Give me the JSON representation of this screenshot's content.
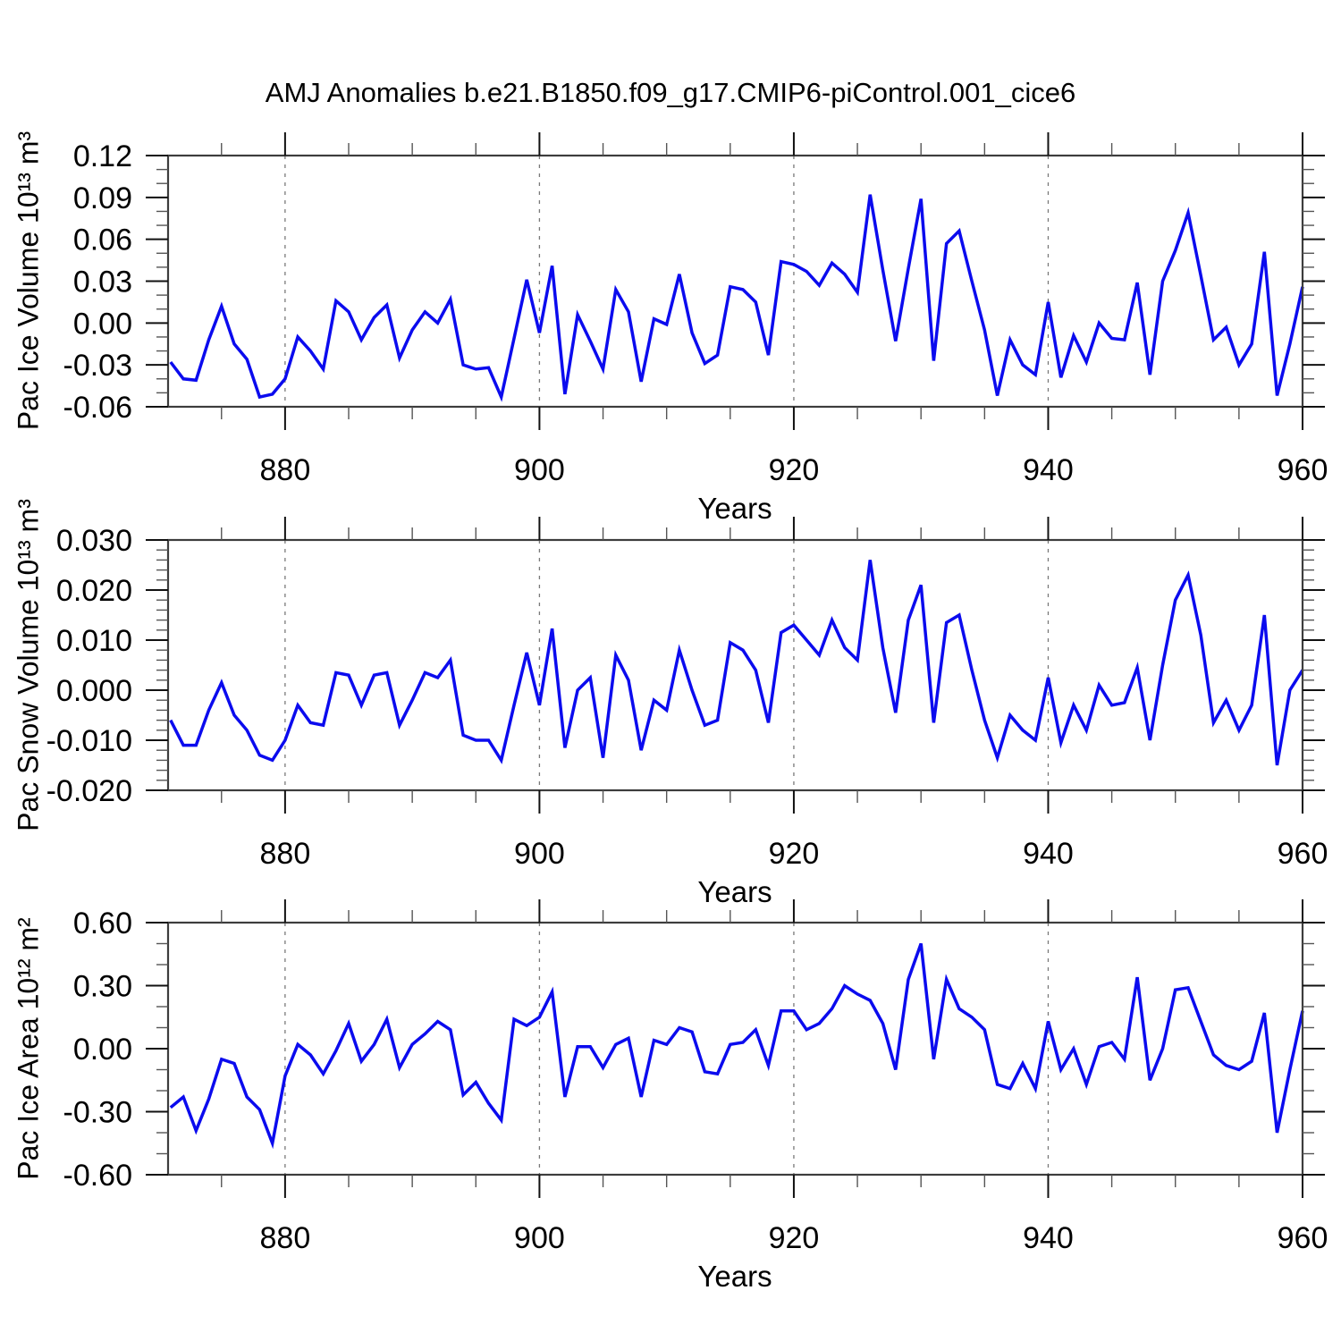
{
  "title": "AMJ Anomalies b.e21.B1850.f09_g17.CMIP6-piControl.001_cice6",
  "chart_data": {
    "type": "line",
    "x_label": "Years",
    "line_color": "#0b0bee",
    "x_axis": {
      "min": 870.8,
      "max": 960,
      "major_ticks": [
        880,
        900,
        920,
        940,
        960
      ],
      "minor_ticks": [
        875,
        885,
        890,
        895,
        905,
        910,
        915,
        925,
        930,
        935,
        945,
        950,
        955
      ],
      "gridlines": [
        880,
        900,
        920,
        940
      ]
    },
    "years": [
      871,
      872,
      873,
      874,
      875,
      876,
      877,
      878,
      879,
      880,
      881,
      882,
      883,
      884,
      885,
      886,
      887,
      888,
      889,
      890,
      891,
      892,
      893,
      894,
      895,
      896,
      897,
      898,
      899,
      900,
      901,
      902,
      903,
      904,
      905,
      906,
      907,
      908,
      909,
      910,
      911,
      912,
      913,
      914,
      915,
      916,
      917,
      918,
      919,
      920,
      921,
      922,
      923,
      924,
      925,
      926,
      927,
      928,
      929,
      930,
      931,
      932,
      933,
      934,
      935,
      936,
      937,
      938,
      939,
      940,
      941,
      942,
      943,
      944,
      945,
      946,
      947,
      948,
      949,
      950,
      951,
      952,
      953,
      954,
      955,
      956,
      957,
      958,
      959,
      960
    ],
    "panels": [
      {
        "name": "pac-ice-volume",
        "y_label": "Pac Ice Volume 10¹³ m³",
        "ylim": [
          -0.06,
          0.12
        ],
        "y_major_step": 0.03,
        "y_minor_step": 0.01,
        "y_decimals": 2,
        "values": [
          -0.028,
          -0.04,
          -0.041,
          -0.012,
          0.012,
          -0.015,
          -0.026,
          -0.053,
          -0.051,
          -0.04,
          -0.01,
          -0.02,
          -0.033,
          0.016,
          0.008,
          -0.012,
          0.004,
          0.013,
          -0.025,
          -0.005,
          0.008,
          0.0,
          0.017,
          -0.03,
          -0.033,
          -0.032,
          -0.053,
          -0.011,
          0.031,
          -0.007,
          0.041,
          -0.051,
          0.006,
          -0.013,
          -0.033,
          0.024,
          0.008,
          -0.042,
          0.003,
          -0.001,
          0.035,
          -0.007,
          -0.029,
          -0.023,
          0.026,
          0.024,
          0.015,
          -0.023,
          0.044,
          0.042,
          0.037,
          0.027,
          0.043,
          0.035,
          0.022,
          0.092,
          0.038,
          -0.013,
          0.039,
          0.089,
          -0.027,
          0.057,
          0.066,
          0.03,
          -0.005,
          -0.052,
          -0.012,
          -0.03,
          -0.037,
          0.015,
          -0.039,
          -0.009,
          -0.028,
          0.0,
          -0.011,
          -0.012,
          0.029,
          -0.037,
          0.03,
          0.052,
          0.079,
          0.034,
          -0.012,
          -0.003,
          -0.03,
          -0.015,
          0.051,
          -0.052,
          -0.015,
          0.026
        ]
      },
      {
        "name": "pac-snow-volume",
        "y_label": "Pac Snow Volume 10¹³ m³",
        "ylim": [
          -0.02,
          0.03
        ],
        "y_major_step": 0.01,
        "y_minor_step": 0.002,
        "y_decimals": 3,
        "values": [
          -0.006,
          -0.011,
          -0.011,
          -0.004,
          0.0015,
          -0.005,
          -0.008,
          -0.013,
          -0.014,
          -0.01,
          -0.003,
          -0.0065,
          -0.007,
          0.0035,
          0.003,
          -0.003,
          0.003,
          0.0035,
          -0.007,
          -0.002,
          0.0035,
          0.0025,
          0.006,
          -0.009,
          -0.01,
          -0.01,
          -0.014,
          -0.003,
          0.0075,
          -0.003,
          0.0123,
          -0.0115,
          0.0,
          0.0025,
          -0.0135,
          0.007,
          0.002,
          -0.012,
          -0.002,
          -0.004,
          0.008,
          0.0,
          -0.007,
          -0.006,
          0.0095,
          0.008,
          0.004,
          -0.0065,
          0.0115,
          0.013,
          0.01,
          0.007,
          0.014,
          0.0085,
          0.006,
          0.026,
          0.0085,
          -0.0045,
          0.014,
          0.021,
          -0.0065,
          0.0135,
          0.015,
          0.004,
          -0.006,
          -0.0135,
          -0.005,
          -0.008,
          -0.01,
          0.0025,
          -0.0105,
          -0.003,
          -0.008,
          0.001,
          -0.003,
          -0.0025,
          0.0045,
          -0.01,
          0.005,
          0.018,
          0.023,
          0.011,
          -0.0065,
          -0.002,
          -0.008,
          -0.003,
          0.015,
          -0.015,
          0.0,
          0.004
        ]
      },
      {
        "name": "pac-ice-area",
        "y_label": "Pac Ice Area 10¹² m²",
        "ylim": [
          -0.6,
          0.6
        ],
        "y_major_step": 0.3,
        "y_minor_step": 0.1,
        "y_decimals": 2,
        "values": [
          -0.28,
          -0.23,
          -0.39,
          -0.24,
          -0.05,
          -0.07,
          -0.23,
          -0.29,
          -0.45,
          -0.13,
          0.02,
          -0.03,
          -0.12,
          -0.01,
          0.12,
          -0.06,
          0.02,
          0.14,
          -0.09,
          0.02,
          0.07,
          0.13,
          0.09,
          -0.22,
          -0.16,
          -0.26,
          -0.34,
          0.14,
          0.11,
          0.15,
          0.27,
          -0.23,
          0.01,
          0.01,
          -0.09,
          0.02,
          0.05,
          -0.23,
          0.04,
          0.02,
          0.1,
          0.08,
          -0.11,
          -0.12,
          0.02,
          0.03,
          0.09,
          -0.08,
          0.18,
          0.18,
          0.09,
          0.12,
          0.19,
          0.3,
          0.26,
          0.23,
          0.12,
          -0.1,
          0.33,
          0.5,
          -0.05,
          0.33,
          0.19,
          0.15,
          0.09,
          -0.17,
          -0.19,
          -0.07,
          -0.19,
          0.13,
          -0.1,
          0.0,
          -0.17,
          0.01,
          0.03,
          -0.05,
          0.34,
          -0.15,
          0.0,
          0.28,
          0.29,
          0.13,
          -0.03,
          -0.08,
          -0.1,
          -0.06,
          0.17,
          -0.4,
          -0.1,
          0.18
        ]
      }
    ]
  }
}
